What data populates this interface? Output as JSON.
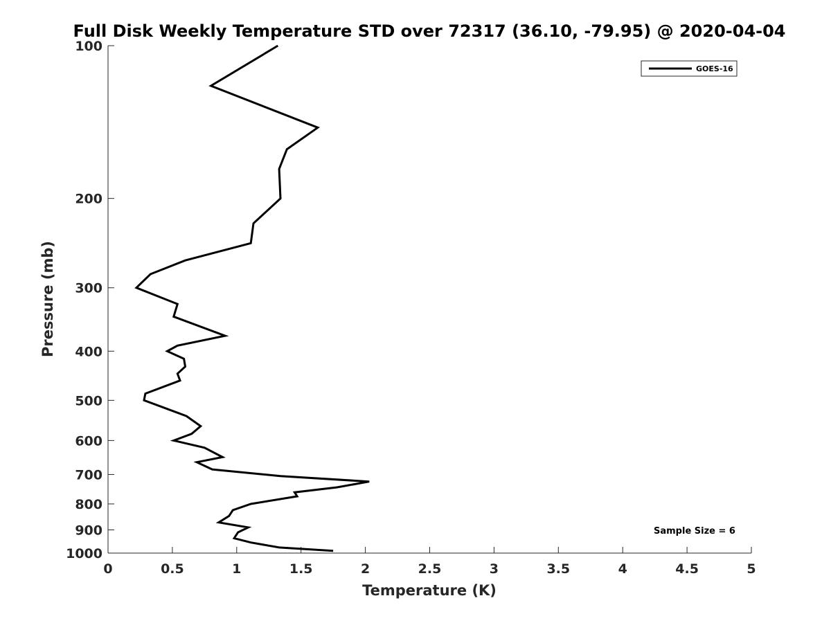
{
  "chart_data": {
    "type": "line",
    "title": "Full Disk Weekly Temperature STD over 72317 (36.10, -79.95) @ 2020-04-04",
    "xlabel": "Temperature (K)",
    "ylabel": "Pressure (mb)",
    "xlim": [
      0,
      5
    ],
    "ylim": [
      1000,
      100
    ],
    "y_scale": "log",
    "y_reversed": true,
    "x_ticks": [
      "0",
      "0.5",
      "1",
      "1.5",
      "2",
      "2.5",
      "3",
      "3.5",
      "4",
      "4.5",
      "5"
    ],
    "y_ticks": [
      "100",
      "200",
      "300",
      "400",
      "500",
      "600",
      "700",
      "800",
      "900",
      "1000"
    ],
    "grid": false,
    "legend_position": "top-right",
    "annotation": "Sample Size = 6",
    "series": [
      {
        "name": "GOES-16",
        "color": "#000000",
        "x": [
          1.32,
          0.8,
          1.63,
          1.39,
          1.33,
          1.34,
          1.13,
          1.11,
          0.6,
          0.33,
          0.22,
          0.54,
          0.51,
          0.91,
          0.54,
          0.46,
          0.59,
          0.6,
          0.54,
          0.56,
          0.29,
          0.28,
          0.61,
          0.72,
          0.65,
          0.51,
          0.75,
          0.89,
          0.69,
          0.81,
          1.34,
          2.03,
          1.78,
          1.45,
          1.47,
          1.11,
          0.97,
          0.94,
          0.86,
          1.09,
          1.01,
          0.98,
          1.11,
          1.33,
          1.75
        ],
        "y": [
          100,
          120,
          145,
          160,
          175,
          200,
          224,
          245,
          265,
          282,
          300,
          323,
          342,
          373,
          390,
          400,
          414,
          429,
          443,
          457,
          485,
          500,
          537,
          562,
          582,
          600,
          620,
          647,
          662,
          684,
          705,
          723,
          742,
          759,
          773,
          800,
          823,
          845,
          870,
          890,
          910,
          935,
          953,
          975,
          990
        ]
      }
    ]
  }
}
